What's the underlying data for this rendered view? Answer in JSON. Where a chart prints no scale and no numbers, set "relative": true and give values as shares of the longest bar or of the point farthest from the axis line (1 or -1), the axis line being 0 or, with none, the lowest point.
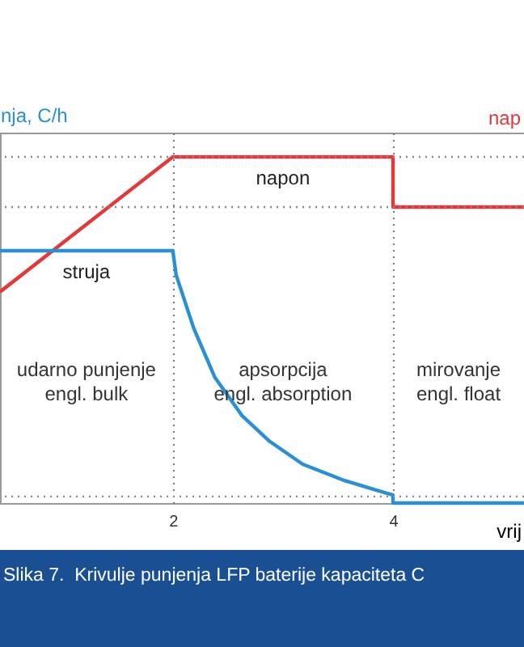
{
  "chart_data": {
    "type": "line",
    "relative": true,
    "ylabel": "nja, C/h",
    "y2label": "nap",
    "xlabel": "vrij",
    "xlim": [
      0.43,
      5.19
    ],
    "xticks": [
      2,
      4
    ],
    "grid": "x",
    "line_style": "solid",
    "marker": "none",
    "series": [
      {
        "name": "napon",
        "color": "#e2393b",
        "x": [
          0.43,
          2,
          4,
          4,
          5.19
        ],
        "values": [
          0.61,
          1,
          1,
          0.855,
          0.855
        ]
      },
      {
        "name": "struja",
        "color": "#2b8fd4",
        "x": [
          0.43,
          2,
          2.03,
          2.19,
          2.38,
          2.63,
          2.88,
          3.18,
          3.56,
          3.85,
          4,
          4,
          5.19
        ],
        "values": [
          0.729,
          0.729,
          0.659,
          0.505,
          0.364,
          0.252,
          0.178,
          0.112,
          0.065,
          0.037,
          0.023,
          0,
          0
        ]
      }
    ],
    "ref_lines": [
      {
        "axis": "y",
        "value": 1,
        "line_style": "dotted",
        "color": "#888888"
      },
      {
        "axis": "y",
        "value": 0.855,
        "line_style": "dotted",
        "color": "#888888"
      },
      {
        "axis": "y",
        "value": 0.019,
        "line_style": "dotted",
        "color": "#888888"
      }
    ],
    "annotations": [
      "udarno punjenje\nengl. bulk",
      "apsorpcija\nengl. absorption",
      "mirovanje\nengl. float",
      "Slika 7.  Krivulje punjenja LFP baterije kapaciteta C"
    ]
  }
}
